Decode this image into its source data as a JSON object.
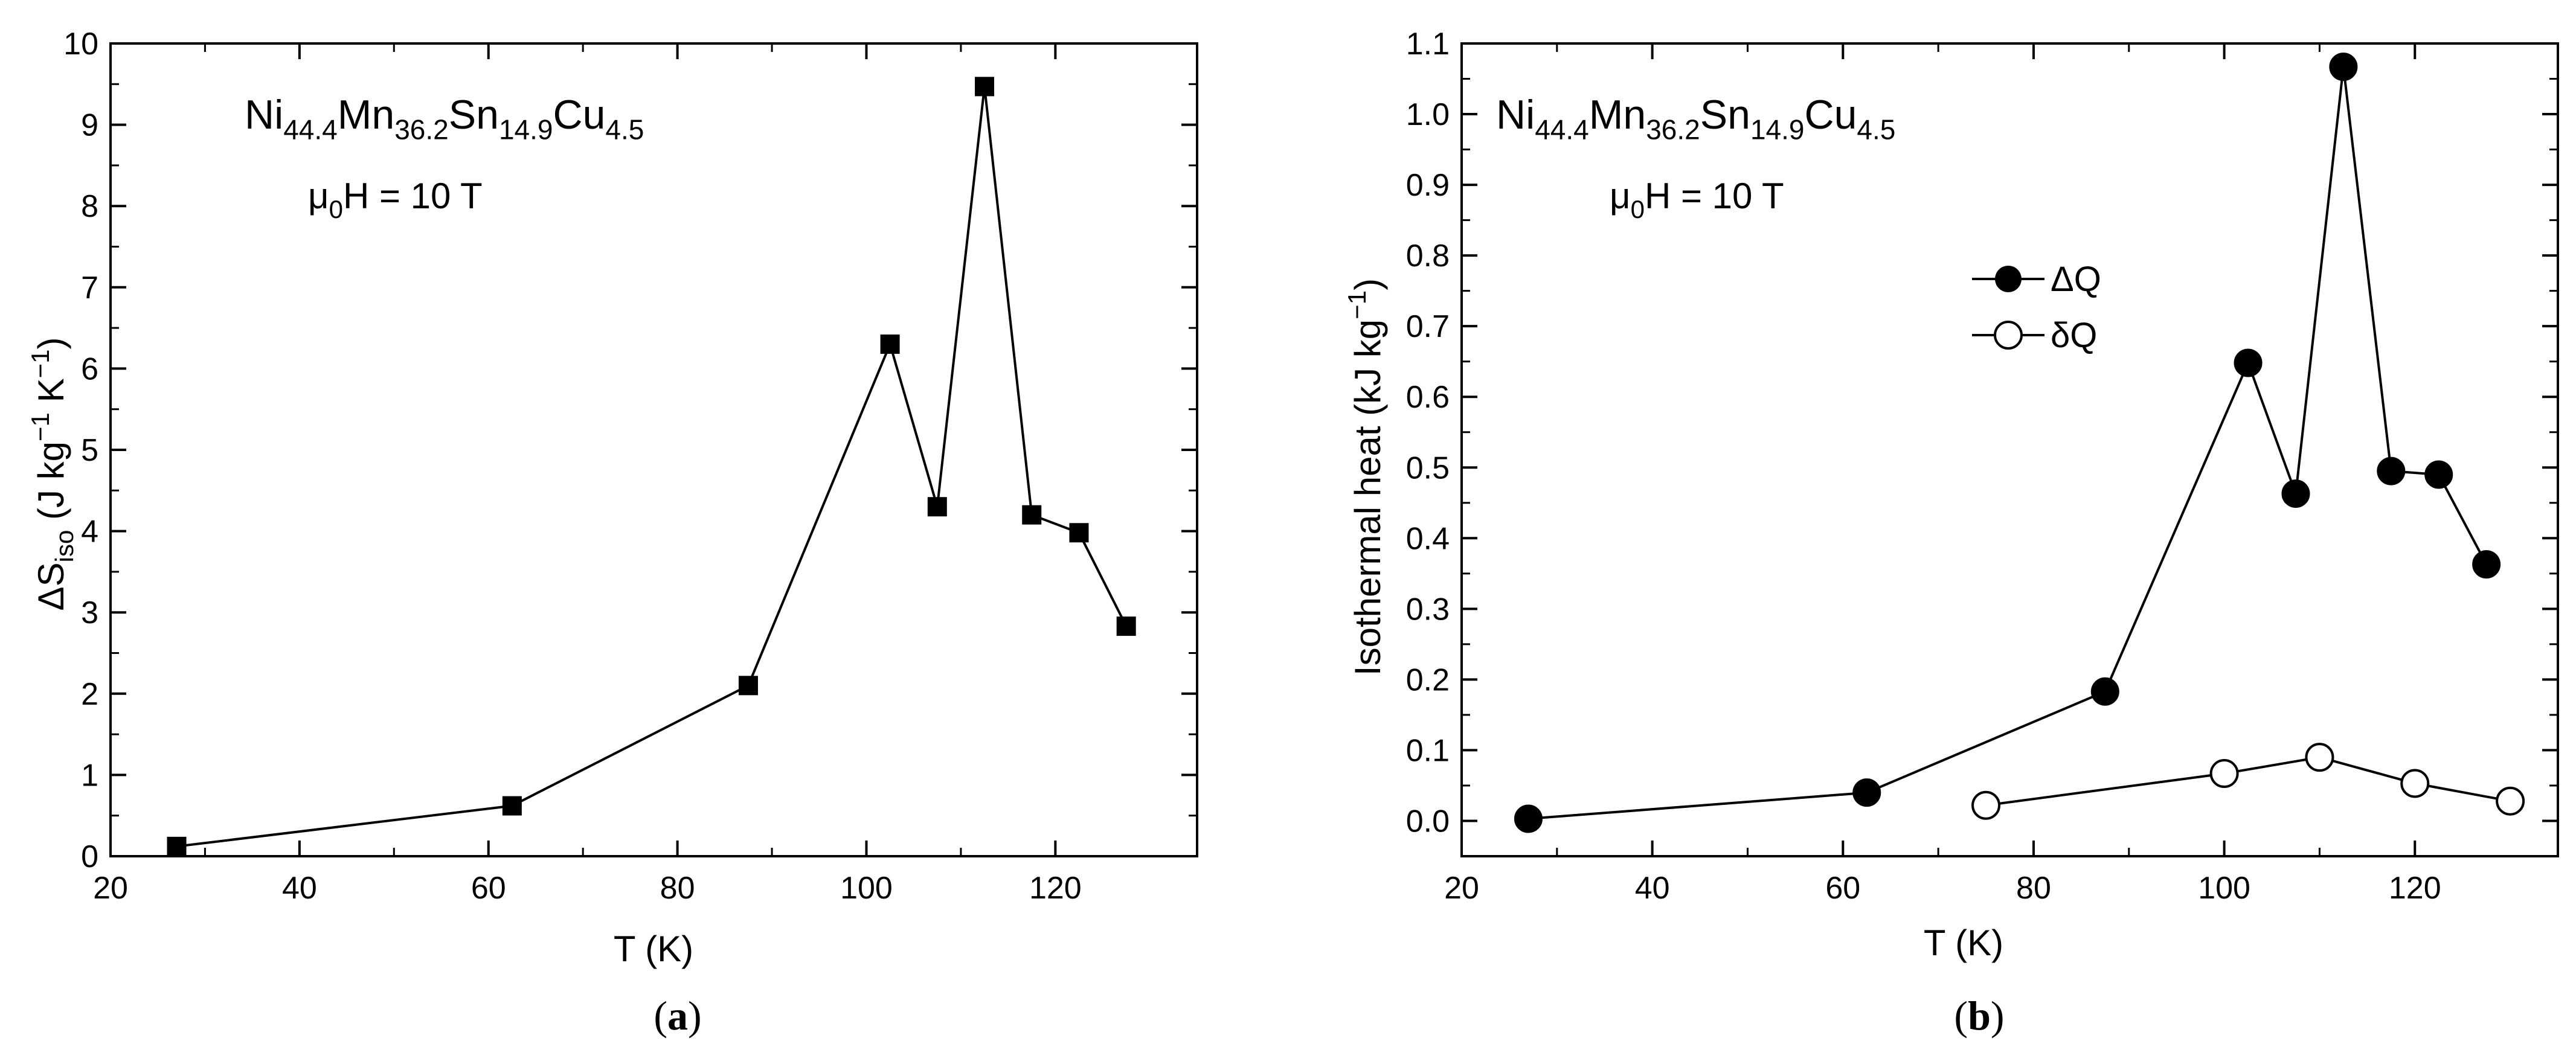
{
  "chart_data": [
    {
      "type": "line",
      "panel_label": "a",
      "annotation": {
        "formula": [
          "Ni",
          "44.4",
          "Mn",
          "36.2",
          "Sn",
          "14.9",
          "Cu",
          "4.5"
        ],
        "field": [
          "μ",
          "0",
          "H = 10 T"
        ]
      },
      "xlabel": "T (K)",
      "ylabel": [
        "ΔS",
        "iso",
        " (J kg",
        "−1",
        " K",
        "−1",
        ")"
      ],
      "xlim": [
        20,
        135
      ],
      "ylim": [
        0,
        10
      ],
      "xticks": [
        20,
        40,
        60,
        80,
        100,
        120
      ],
      "yticks": [
        0,
        1,
        2,
        3,
        4,
        5,
        6,
        7,
        8,
        9,
        10
      ],
      "grid": false,
      "series": [
        {
          "marker": "square-filled",
          "x": [
            27,
            62.5,
            87.5,
            102.5,
            107.5,
            112.5,
            117.5,
            122.5,
            127.5
          ],
          "y": [
            0.12,
            0.62,
            2.1,
            6.3,
            4.3,
            9.47,
            4.2,
            3.98,
            2.83
          ]
        }
      ]
    },
    {
      "type": "line",
      "panel_label": "b",
      "annotation": {
        "formula": [
          "Ni",
          "44.4",
          "Mn",
          "36.2",
          "Sn",
          "14.9",
          "Cu",
          "4.5"
        ],
        "field": [
          "μ",
          "0",
          "H = 10 T"
        ]
      },
      "xlabel": "T (K)",
      "ylabel": [
        "Isothermal heat (kJ kg",
        "−1",
        ")"
      ],
      "xlim": [
        20,
        135
      ],
      "ylim": [
        -0.05,
        1.1
      ],
      "xticks": [
        20,
        40,
        60,
        80,
        100,
        120
      ],
      "yticks": [
        "0.0",
        "0.1",
        "0.2",
        "0.3",
        "0.4",
        "0.5",
        "0.6",
        "0.7",
        "0.8",
        "0.9",
        "1.0",
        "1.1"
      ],
      "grid": false,
      "legend_position": "upper-middle",
      "series": [
        {
          "name": "ΔQ",
          "marker": "circle-filled",
          "x": [
            27,
            62.5,
            87.5,
            102.5,
            107.5,
            112.5,
            117.5,
            122.5,
            127.5
          ],
          "y": [
            0.003,
            0.04,
            0.183,
            0.648,
            0.463,
            1.067,
            0.495,
            0.49,
            0.363
          ]
        },
        {
          "name": "δQ",
          "marker": "circle-open",
          "x": [
            75,
            100,
            110,
            120,
            130
          ],
          "y": [
            0.022,
            0.067,
            0.09,
            0.053,
            0.028
          ]
        }
      ]
    }
  ]
}
